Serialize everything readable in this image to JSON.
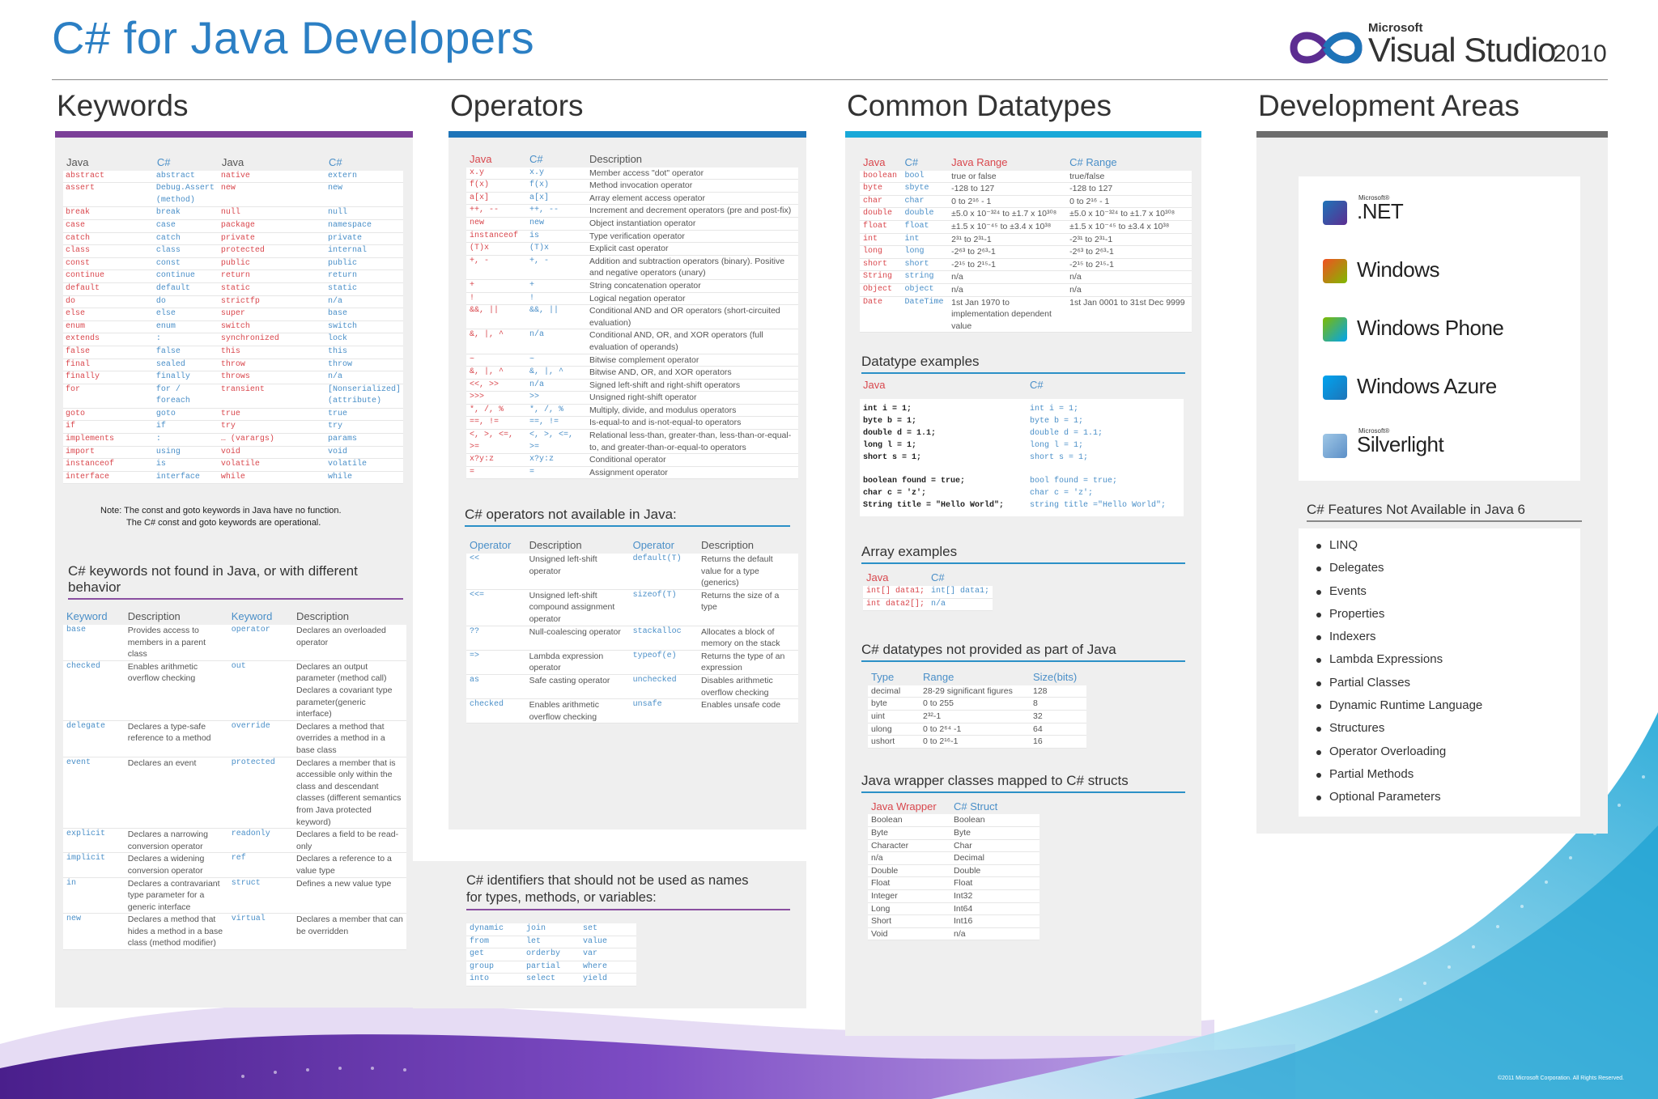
{
  "header": {
    "title": "C# for Java Developers",
    "logo_microsoft": "Microsoft",
    "logo_product": "Visual Studio",
    "logo_year": "2010"
  },
  "keywords": {
    "heading": "Keywords",
    "headers": [
      "Java",
      "C#",
      "Java",
      "C#"
    ],
    "rows": [
      [
        "abstract",
        "abstract",
        "native",
        "extern"
      ],
      [
        "assert",
        "Debug.Assert (method)",
        "new",
        "new"
      ],
      [
        "break",
        "break",
        "null",
        "null"
      ],
      [
        "case",
        "case",
        "package",
        "namespace"
      ],
      [
        "catch",
        "catch",
        "private",
        "private"
      ],
      [
        "class",
        "class",
        "protected",
        "internal"
      ],
      [
        "const",
        "const",
        "public",
        "public"
      ],
      [
        "continue",
        "continue",
        "return",
        "return"
      ],
      [
        "default",
        "default",
        "static",
        "static"
      ],
      [
        "do",
        "do",
        "strictfp",
        "n/a"
      ],
      [
        "else",
        "else",
        "super",
        "base"
      ],
      [
        "enum",
        "enum",
        "switch",
        "switch"
      ],
      [
        "extends",
        ":",
        "synchronized",
        "lock"
      ],
      [
        "false",
        "false",
        "this",
        "this"
      ],
      [
        "final",
        "sealed",
        "throw",
        "throw"
      ],
      [
        "finally",
        "finally",
        "throws",
        "n/a"
      ],
      [
        "for",
        "for / foreach",
        "transient",
        "[Nonserialized] (attribute)"
      ],
      [
        "goto",
        "goto",
        "true",
        "true"
      ],
      [
        "if",
        "if",
        "try",
        "try"
      ],
      [
        "implements",
        ":",
        "… (varargs)",
        "params"
      ],
      [
        "import",
        "using",
        "void",
        "void"
      ],
      [
        "instanceof",
        "is",
        "volatile",
        "volatile"
      ],
      [
        "interface",
        "interface",
        "while",
        "while"
      ]
    ],
    "note_line1": "Note: The const and goto keywords in Java have no function.",
    "note_line2": "The C# const and goto keywords are operational.",
    "diff_heading": "C# keywords not found in Java, or with different behavior",
    "diff_headers": [
      "Keyword",
      "Description",
      "Keyword",
      "Description"
    ],
    "diff_rows": [
      [
        "base",
        "Provides access to members in a parent class",
        "operator",
        "Declares an overloaded operator"
      ],
      [
        "checked",
        "Enables arithmetic overflow checking",
        "out",
        "Declares an output parameter (method call) Declares a covariant type parameter(generic interface)"
      ],
      [
        "delegate",
        "Declares a type-safe reference to a method",
        "override",
        "Declares a method that overrides a method in a base class"
      ],
      [
        "event",
        "Declares an event",
        "protected",
        "Declares a member that is accessible only within the class and descendant classes (different semantics from Java protected keyword)"
      ],
      [
        "explicit",
        "Declares a narrowing conversion operator",
        "readonly",
        "Declares a field to be read-only"
      ],
      [
        "implicit",
        "Declares a widening conversion operator",
        "ref",
        "Declares a reference to a value type"
      ],
      [
        "in",
        "Declares a contravariant type parameter for a generic interface",
        "struct",
        "Defines a new value type"
      ],
      [
        "new",
        "Declares a method that hides a method in a base class (method modifier)",
        "virtual",
        "Declares a member that can be overridden"
      ]
    ]
  },
  "operators": {
    "heading": "Operators",
    "headers": [
      "Java",
      "C#",
      "Description"
    ],
    "rows": [
      [
        "x.y",
        "x.y",
        "Member access \"dot\" operator"
      ],
      [
        "f(x)",
        "f(x)",
        "Method invocation operator"
      ],
      [
        "a[x]",
        "a[x]",
        "Array element access operator"
      ],
      [
        "++, --",
        "++, --",
        "Increment and decrement operators (pre and post-fix)"
      ],
      [
        "new",
        "new",
        "Object instantiation operator"
      ],
      [
        "instanceof",
        "is",
        "Type verification operator"
      ],
      [
        "(T)x",
        "(T)x",
        "Explicit cast operator"
      ],
      [
        "+, -",
        "+, -",
        "Addition and subtraction operators (binary). Positive and negative operators (unary)"
      ],
      [
        "+",
        "+",
        "String concatenation operator"
      ],
      [
        "!",
        "!",
        "Logical negation operator"
      ],
      [
        "&&, ||",
        "&&, ||",
        "Conditional AND and OR operators (short-circuited evaluation)"
      ],
      [
        "&, |, ^",
        "n/a",
        "Conditional AND, OR, and XOR operators (full evaluation of operands)"
      ],
      [
        "~",
        "~",
        "Bitwise complement operator"
      ],
      [
        "&, |, ^",
        "&, |, ^",
        "Bitwise AND, OR, and XOR operators"
      ],
      [
        "<<, >>",
        "n/a",
        "Signed left-shift and right-shift operators"
      ],
      [
        ">>>",
        ">>",
        "Unsigned right-shift operator"
      ],
      [
        "*, /, %",
        "*, /, %",
        "Multiply, divide, and modulus operators"
      ],
      [
        "==, !=",
        "==, !=",
        "Is-equal-to and is-not-equal-to operators"
      ],
      [
        "<, >, <=, >=",
        "<, >, <=, >=",
        "Relational less-than, greater-than, less-than-or-equal-to, and greater-than-or-equal-to operators"
      ],
      [
        "x?y:z",
        "x?y:z",
        "Conditional operator"
      ],
      [
        "=",
        "=",
        "Assignment operator"
      ]
    ],
    "na_heading": "C# operators not available in Java:",
    "na_headers": [
      "Operator",
      "Description",
      "Operator",
      "Description"
    ],
    "na_rows": [
      [
        "<<",
        "Unsigned left-shift operator",
        "default(T)",
        "Returns the default value for a type (generics)"
      ],
      [
        "<<=",
        "Unsigned left-shift compound assignment operator",
        "sizeof(T)",
        "Returns the size of a type"
      ],
      [
        "??",
        "Null-coalescing operator",
        "stackalloc",
        "Allocates a block of memory on the stack"
      ],
      [
        "=>",
        "Lambda expression operator",
        "typeof(e)",
        "Returns the type of an expression"
      ],
      [
        "as",
        "Safe casting operator",
        "unchecked",
        "Disables arithmetic overflow checking"
      ],
      [
        "checked",
        "Enables arithmetic overflow checking",
        "unsafe",
        "Enables unsafe code"
      ]
    ],
    "ident_heading_1": "C# identifiers that should not be used as names",
    "ident_heading_2": "for types, methods, or variables:",
    "ident_rows": [
      [
        "dynamic",
        "join",
        "set"
      ],
      [
        "from",
        "let",
        "value"
      ],
      [
        "get",
        "orderby",
        "var"
      ],
      [
        "group",
        "partial",
        "where"
      ],
      [
        "into",
        "select",
        "yield"
      ]
    ]
  },
  "datatypes": {
    "heading": "Common Datatypes",
    "headers": [
      "Java",
      "C#",
      "Java Range",
      "C# Range"
    ],
    "rows": [
      [
        "boolean",
        "bool",
        "true or false",
        "true/false"
      ],
      [
        "byte",
        "sbyte",
        "-128 to 127",
        "-128 to 127"
      ],
      [
        "char",
        "char",
        "0 to 2¹⁶ - 1",
        "0 to 2¹⁶ - 1"
      ],
      [
        "double",
        "double",
        "±5.0 x 10⁻³²⁴ to ±1.7 x 10³⁰⁸",
        "±5.0 x 10⁻³²⁴ to ±1.7 x 10³⁰⁸"
      ],
      [
        "float",
        "float",
        "±1.5 x 10⁻⁴⁵ to ±3.4 x 10³⁸",
        "±1.5 x 10⁻⁴⁵ to ±3.4 x 10³⁸"
      ],
      [
        "int",
        "int",
        "2³¹ to 2³¹-1",
        "-2³¹ to 2³¹-1"
      ],
      [
        "long",
        "long",
        "-2⁶³ to 2⁶³-1",
        "-2⁶³ to 2⁶³-1"
      ],
      [
        "short",
        "short",
        "-2¹⁵ to 2¹⁵-1",
        "-2¹⁵ to 2¹⁵-1"
      ],
      [
        "String",
        "string",
        "n/a",
        "n/a"
      ],
      [
        "Object",
        "object",
        "n/a",
        "n/a"
      ],
      [
        "Date",
        "DateTime",
        "1st Jan 1970 to implementation dependent value",
        "1st Jan 0001 to 31st Dec 9999"
      ]
    ],
    "ex_heading": "Datatype examples",
    "ex_col_java": "Java",
    "ex_col_cs": "C#",
    "ex_java": [
      "int i = 1;",
      "byte b = 1;",
      "double d = 1.1;",
      "long l = 1;",
      "short s = 1;",
      "",
      "boolean found = true;",
      "char c = 'z';",
      "String title = \"Hello World\";"
    ],
    "ex_cs": [
      "int i = 1;",
      "byte b = 1;",
      "double d = 1.1;",
      "long l = 1;",
      "short s = 1;",
      "",
      "bool found = true;",
      "char c = 'z';",
      "string title =\"Hello World\";"
    ],
    "arr_heading": "Array examples",
    "arr_headers": [
      "Java",
      "C#"
    ],
    "arr_rows": [
      [
        "int[] data1;",
        "int[] data1;"
      ],
      [
        "int data2[];",
        "n/a"
      ]
    ],
    "np_heading": "C# datatypes not provided as part of Java",
    "np_headers": [
      "Type",
      "Range",
      "Size(bits)"
    ],
    "np_rows": [
      [
        "decimal",
        "28-29 significant figures",
        "128"
      ],
      [
        "byte",
        "0 to 255",
        "8"
      ],
      [
        "uint",
        "2³²-1",
        "32"
      ],
      [
        "ulong",
        "0 to 2⁶⁴ -1",
        "64"
      ],
      [
        "ushort",
        "0 to 2¹⁶-1",
        "16"
      ]
    ],
    "wr_heading": "Java wrapper classes mapped to C# structs",
    "wr_headers": [
      "Java Wrapper",
      "C# Struct"
    ],
    "wr_rows": [
      [
        "Boolean",
        "Boolean"
      ],
      [
        "Byte",
        "Byte"
      ],
      [
        "Character",
        "Char"
      ],
      [
        "n/a",
        "Decimal"
      ],
      [
        "Double",
        "Double"
      ],
      [
        "Float",
        "Float"
      ],
      [
        "Integer",
        "Int32"
      ],
      [
        "Long",
        "Int64"
      ],
      [
        "Short",
        "Int16"
      ],
      [
        "Void",
        "n/a"
      ]
    ]
  },
  "development": {
    "heading": "Development Areas",
    "areas": [
      {
        "sup": "Microsoft®",
        "name": ".NET"
      },
      {
        "sup": "",
        "name": "Windows"
      },
      {
        "sup": "",
        "name": "Windows Phone"
      },
      {
        "sup": "",
        "name": "Windows Azure"
      },
      {
        "sup": "Microsoft®",
        "name": "Silverlight"
      }
    ],
    "features_heading": "C# Features Not Available in Java 6",
    "features": [
      "LINQ",
      "Delegates",
      "Events",
      "Properties",
      "Indexers",
      "Lambda Expressions",
      "Partial Classes",
      "Dynamic Runtime Language",
      "Structures",
      "Operator Overloading",
      "Partial Methods",
      "Optional Parameters"
    ]
  },
  "footer": {
    "copyright": "©2011 Microsoft Corporation. All Rights Reserved."
  },
  "colors": {
    "purple": "#7b3f98",
    "blue": "#1e74b8",
    "cyan": "#19a8d8",
    "grey": "#6d6d6d",
    "title": "#2b7fc4",
    "java_red": "#d9474d",
    "csharp_blue": "#4a8fc8"
  }
}
